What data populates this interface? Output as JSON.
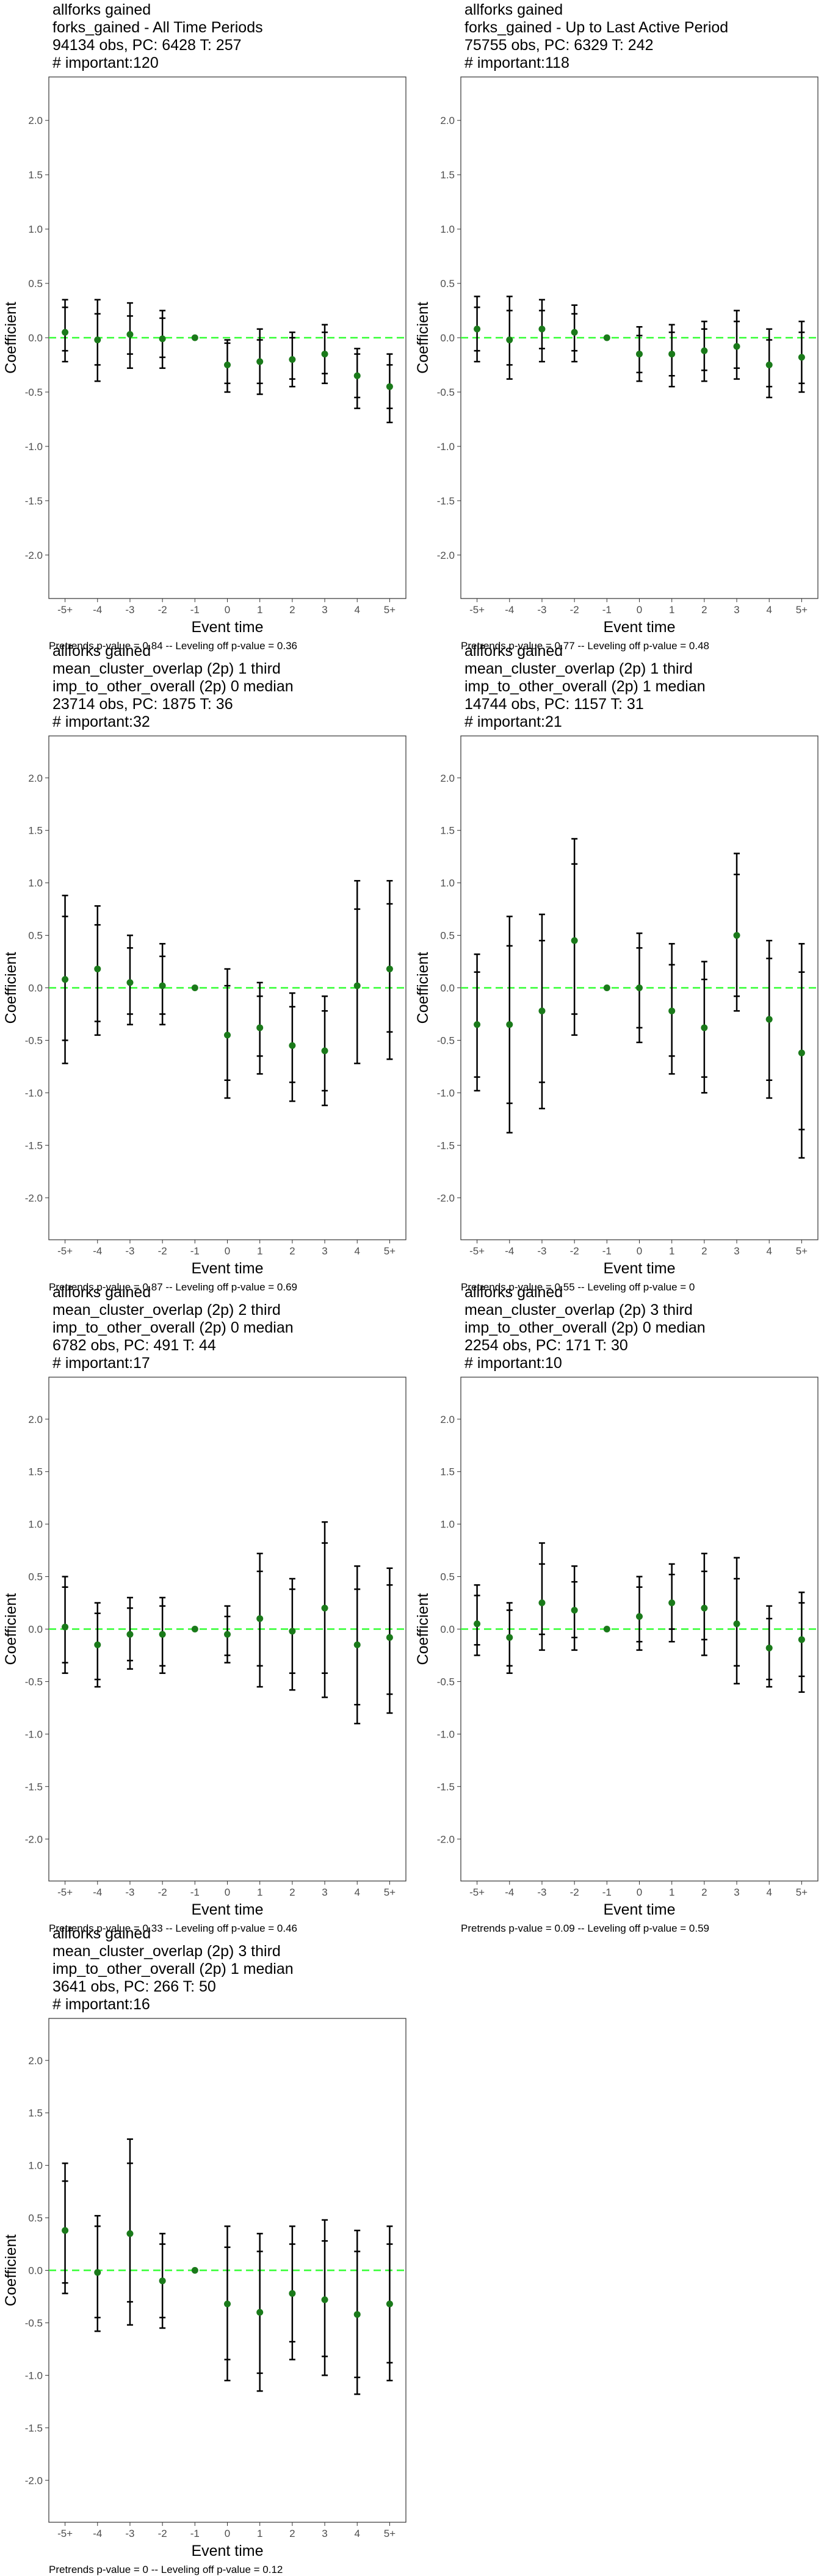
{
  "chart_data": [
    {
      "type": "scatter",
      "title_lines": [
        "allforks gained",
        "forks_gained - All Time Periods",
        "94134 obs, PC: 6428 T: 257",
        "# important:120"
      ],
      "xlabel": "Event time",
      "ylabel": "Coefficient",
      "categories": [
        "-5+",
        "-4",
        "-3",
        "-2",
        "-1",
        "0",
        "1",
        "2",
        "3",
        "4",
        "5+"
      ],
      "ylim": [
        -2.4,
        2.4
      ],
      "yticks": [
        "-2.0",
        "-1.5",
        "-1.0",
        "-0.5",
        "0.0",
        "0.5",
        "1.0",
        "1.5",
        "2.0"
      ],
      "estimate": [
        0.05,
        -0.02,
        0.03,
        -0.01,
        0,
        -0.25,
        -0.22,
        -0.2,
        -0.15,
        -0.35,
        -0.45
      ],
      "inner_ci": [
        [
          -0.12,
          0.28
        ],
        [
          -0.25,
          0.22
        ],
        [
          -0.15,
          0.2
        ],
        [
          -0.18,
          0.18
        ],
        [
          0,
          0
        ],
        [
          -0.42,
          -0.05
        ],
        [
          -0.42,
          -0.02
        ],
        [
          -0.38,
          0
        ],
        [
          -0.33,
          0.05
        ],
        [
          -0.55,
          -0.15
        ],
        [
          -0.65,
          -0.25
        ]
      ],
      "outer_ci": [
        [
          -0.22,
          0.35
        ],
        [
          -0.4,
          0.35
        ],
        [
          -0.28,
          0.32
        ],
        [
          -0.28,
          0.25
        ],
        [
          0,
          0
        ],
        [
          -0.5,
          -0.02
        ],
        [
          -0.52,
          0.08
        ],
        [
          -0.45,
          0.05
        ],
        [
          -0.42,
          0.12
        ],
        [
          -0.65,
          -0.1
        ],
        [
          -0.78,
          -0.15
        ]
      ],
      "caption": "Pretrends p-value = 0.84 -- Leveling off p-value = 0.36"
    },
    {
      "type": "scatter",
      "title_lines": [
        "allforks gained",
        "forks_gained - Up to Last Active Period",
        "75755 obs, PC: 6329 T: 242",
        "# important:118"
      ],
      "xlabel": "Event time",
      "ylabel": "Coefficient",
      "categories": [
        "-5+",
        "-4",
        "-3",
        "-2",
        "-1",
        "0",
        "1",
        "2",
        "3",
        "4",
        "5+"
      ],
      "ylim": [
        -2.4,
        2.4
      ],
      "yticks": [
        "-2.0",
        "-1.5",
        "-1.0",
        "-0.5",
        "0.0",
        "0.5",
        "1.0",
        "1.5",
        "2.0"
      ],
      "estimate": [
        0.08,
        -0.02,
        0.08,
        0.05,
        0,
        -0.15,
        -0.15,
        -0.12,
        -0.08,
        -0.25,
        -0.18
      ],
      "inner_ci": [
        [
          -0.12,
          0.28
        ],
        [
          -0.25,
          0.25
        ],
        [
          -0.1,
          0.25
        ],
        [
          -0.12,
          0.22
        ],
        [
          0,
          0
        ],
        [
          -0.32,
          0.02
        ],
        [
          -0.35,
          0.05
        ],
        [
          -0.3,
          0.08
        ],
        [
          -0.28,
          0.15
        ],
        [
          -0.45,
          -0.02
        ],
        [
          -0.42,
          0.05
        ]
      ],
      "outer_ci": [
        [
          -0.22,
          0.38
        ],
        [
          -0.38,
          0.38
        ],
        [
          -0.22,
          0.35
        ],
        [
          -0.22,
          0.3
        ],
        [
          0,
          0
        ],
        [
          -0.4,
          0.1
        ],
        [
          -0.45,
          0.12
        ],
        [
          -0.4,
          0.15
        ],
        [
          -0.38,
          0.25
        ],
        [
          -0.55,
          0.08
        ],
        [
          -0.5,
          0.15
        ]
      ],
      "caption": "Pretrends p-value = 0.77 -- Leveling off p-value = 0.48"
    },
    {
      "type": "scatter",
      "title_lines": [
        "allforks gained",
        "mean_cluster_overlap (2p) 1 third",
        "imp_to_other_overall (2p) 0 median",
        "23714 obs, PC: 1875 T: 36",
        "# important:32"
      ],
      "xlabel": "Event time",
      "ylabel": "Coefficient",
      "categories": [
        "-5+",
        "-4",
        "-3",
        "-2",
        "-1",
        "0",
        "1",
        "2",
        "3",
        "4",
        "5+"
      ],
      "ylim": [
        -2.4,
        2.4
      ],
      "yticks": [
        "-2.0",
        "-1.5",
        "-1.0",
        "-0.5",
        "0.0",
        "0.5",
        "1.0",
        "1.5",
        "2.0"
      ],
      "estimate": [
        0.08,
        0.18,
        0.05,
        0.02,
        0,
        -0.45,
        -0.38,
        -0.55,
        -0.6,
        0.02,
        0.18
      ],
      "inner_ci": [
        [
          -0.5,
          0.68
        ],
        [
          -0.32,
          0.6
        ],
        [
          -0.25,
          0.38
        ],
        [
          -0.25,
          0.3
        ],
        [
          0,
          0
        ],
        [
          -0.88,
          0.02
        ],
        [
          -0.65,
          -0.08
        ],
        [
          -0.9,
          -0.18
        ],
        [
          -0.98,
          -0.22
        ],
        [
          -0.72,
          0.75
        ],
        [
          -0.42,
          0.8
        ]
      ],
      "outer_ci": [
        [
          -0.72,
          0.88
        ],
        [
          -0.45,
          0.78
        ],
        [
          -0.35,
          0.5
        ],
        [
          -0.35,
          0.42
        ],
        [
          0,
          0
        ],
        [
          -1.05,
          0.18
        ],
        [
          -0.82,
          0.05
        ],
        [
          -1.08,
          -0.05
        ],
        [
          -1.12,
          -0.08
        ],
        [
          -0.72,
          1.02
        ],
        [
          -0.68,
          1.02
        ]
      ],
      "caption": "Pretrends p-value = 0.87 -- Leveling off p-value = 0.69"
    },
    {
      "type": "scatter",
      "title_lines": [
        "allforks gained",
        "mean_cluster_overlap (2p) 1 third",
        "imp_to_other_overall (2p) 1 median",
        "14744 obs, PC: 1157 T: 31",
        "# important:21"
      ],
      "xlabel": "Event time",
      "ylabel": "Coefficient",
      "categories": [
        "-5+",
        "-4",
        "-3",
        "-2",
        "-1",
        "0",
        "1",
        "2",
        "3",
        "4",
        "5+"
      ],
      "ylim": [
        -2.4,
        2.4
      ],
      "yticks": [
        "-2.0",
        "-1.5",
        "-1.0",
        "-0.5",
        "0.0",
        "0.5",
        "1.0",
        "1.5",
        "2.0"
      ],
      "estimate": [
        -0.35,
        -0.35,
        -0.22,
        0.45,
        0,
        0.0,
        -0.22,
        -0.38,
        0.5,
        -0.3,
        -0.62
      ],
      "inner_ci": [
        [
          -0.85,
          0.15
        ],
        [
          -1.1,
          0.4
        ],
        [
          -0.9,
          0.45
        ],
        [
          -0.25,
          1.18
        ],
        [
          0,
          0
        ],
        [
          -0.38,
          0.38
        ],
        [
          -0.65,
          0.22
        ],
        [
          -0.85,
          0.08
        ],
        [
          -0.08,
          1.08
        ],
        [
          -0.88,
          0.28
        ],
        [
          -1.35,
          0.15
        ]
      ],
      "outer_ci": [
        [
          -0.98,
          0.32
        ],
        [
          -1.38,
          0.68
        ],
        [
          -1.15,
          0.7
        ],
        [
          -0.45,
          1.42
        ],
        [
          0,
          0
        ],
        [
          -0.52,
          0.52
        ],
        [
          -0.82,
          0.42
        ],
        [
          -1.0,
          0.25
        ],
        [
          -0.22,
          1.28
        ],
        [
          -1.05,
          0.45
        ],
        [
          -1.62,
          0.42
        ]
      ],
      "caption": "Pretrends p-value = 0.55 -- Leveling off p-value = 0"
    },
    {
      "type": "scatter",
      "title_lines": [
        "allforks gained",
        "mean_cluster_overlap (2p) 2 third",
        "imp_to_other_overall (2p) 0 median",
        "6782 obs, PC: 491 T: 44",
        "# important:17"
      ],
      "xlabel": "Event time",
      "ylabel": "Coefficient",
      "categories": [
        "-5+",
        "-4",
        "-3",
        "-2",
        "-1",
        "0",
        "1",
        "2",
        "3",
        "4",
        "5+"
      ],
      "ylim": [
        -2.4,
        2.4
      ],
      "yticks": [
        "-2.0",
        "-1.5",
        "-1.0",
        "-0.5",
        "0.0",
        "0.5",
        "1.0",
        "1.5",
        "2.0"
      ],
      "estimate": [
        0.02,
        -0.15,
        -0.05,
        -0.05,
        0,
        -0.05,
        0.1,
        -0.02,
        0.2,
        -0.15,
        -0.08
      ],
      "inner_ci": [
        [
          -0.32,
          0.4
        ],
        [
          -0.48,
          0.15
        ],
        [
          -0.3,
          0.2
        ],
        [
          -0.35,
          0.22
        ],
        [
          0,
          0
        ],
        [
          -0.25,
          0.12
        ],
        [
          -0.35,
          0.55
        ],
        [
          -0.42,
          0.38
        ],
        [
          -0.42,
          0.82
        ],
        [
          -0.72,
          0.38
        ],
        [
          -0.62,
          0.42
        ]
      ],
      "outer_ci": [
        [
          -0.42,
          0.5
        ],
        [
          -0.55,
          0.25
        ],
        [
          -0.38,
          0.3
        ],
        [
          -0.42,
          0.3
        ],
        [
          0,
          0
        ],
        [
          -0.32,
          0.22
        ],
        [
          -0.55,
          0.72
        ],
        [
          -0.58,
          0.48
        ],
        [
          -0.65,
          1.02
        ],
        [
          -0.9,
          0.6
        ],
        [
          -0.8,
          0.58
        ]
      ],
      "caption": "Pretrends p-value = 0.33 -- Leveling off p-value = 0.46"
    },
    {
      "type": "scatter",
      "title_lines": [
        "allforks gained",
        "mean_cluster_overlap (2p) 3 third",
        "imp_to_other_overall (2p) 0 median",
        "2254 obs, PC: 171 T: 30",
        "# important:10"
      ],
      "xlabel": "Event time",
      "ylabel": "Coefficient",
      "categories": [
        "-5+",
        "-4",
        "-3",
        "-2",
        "-1",
        "0",
        "1",
        "2",
        "3",
        "4",
        "5+"
      ],
      "ylim": [
        -2.4,
        2.4
      ],
      "yticks": [
        "-2.0",
        "-1.5",
        "-1.0",
        "-0.5",
        "0.0",
        "0.5",
        "1.0",
        "1.5",
        "2.0"
      ],
      "estimate": [
        0.05,
        -0.08,
        0.25,
        0.18,
        0,
        0.12,
        0.25,
        0.2,
        0.05,
        -0.18,
        -0.1
      ],
      "inner_ci": [
        [
          -0.15,
          0.32
        ],
        [
          -0.35,
          0.18
        ],
        [
          -0.05,
          0.62
        ],
        [
          -0.08,
          0.45
        ],
        [
          0,
          0
        ],
        [
          -0.12,
          0.4
        ],
        [
          0.0,
          0.52
        ],
        [
          -0.1,
          0.55
        ],
        [
          -0.35,
          0.48
        ],
        [
          -0.48,
          0.1
        ],
        [
          -0.45,
          0.25
        ]
      ],
      "outer_ci": [
        [
          -0.25,
          0.42
        ],
        [
          -0.42,
          0.25
        ],
        [
          -0.2,
          0.82
        ],
        [
          -0.2,
          0.6
        ],
        [
          0,
          0
        ],
        [
          -0.2,
          0.5
        ],
        [
          -0.12,
          0.62
        ],
        [
          -0.25,
          0.72
        ],
        [
          -0.52,
          0.68
        ],
        [
          -0.55,
          0.22
        ],
        [
          -0.6,
          0.35
        ]
      ],
      "caption": "Pretrends p-value = 0.09 -- Leveling off p-value = 0.59"
    },
    {
      "type": "scatter",
      "title_lines": [
        "allforks gained",
        "mean_cluster_overlap (2p) 3 third",
        "imp_to_other_overall (2p) 1 median",
        "3641 obs, PC: 266 T: 50",
        "# important:16"
      ],
      "xlabel": "Event time",
      "ylabel": "Coefficient",
      "categories": [
        "-5+",
        "-4",
        "-3",
        "-2",
        "-1",
        "0",
        "1",
        "2",
        "3",
        "4",
        "5+"
      ],
      "ylim": [
        -2.4,
        2.4
      ],
      "yticks": [
        "-2.0",
        "-1.5",
        "-1.0",
        "-0.5",
        "0.0",
        "0.5",
        "1.0",
        "1.5",
        "2.0"
      ],
      "estimate": [
        0.38,
        -0.02,
        0.35,
        -0.1,
        0,
        -0.32,
        -0.4,
        -0.22,
        -0.28,
        -0.42,
        -0.32
      ],
      "inner_ci": [
        [
          -0.12,
          0.85
        ],
        [
          -0.45,
          0.42
        ],
        [
          -0.3,
          1.02
        ],
        [
          -0.45,
          0.25
        ],
        [
          0,
          0
        ],
        [
          -0.85,
          0.22
        ],
        [
          -0.98,
          0.18
        ],
        [
          -0.68,
          0.25
        ],
        [
          -0.82,
          0.28
        ],
        [
          -1.02,
          0.18
        ],
        [
          -0.88,
          0.25
        ]
      ],
      "outer_ci": [
        [
          -0.22,
          1.02
        ],
        [
          -0.58,
          0.52
        ],
        [
          -0.52,
          1.25
        ],
        [
          -0.55,
          0.35
        ],
        [
          0,
          0
        ],
        [
          -1.05,
          0.42
        ],
        [
          -1.15,
          0.35
        ],
        [
          -0.85,
          0.42
        ],
        [
          -1.0,
          0.48
        ],
        [
          -1.18,
          0.38
        ],
        [
          -1.05,
          0.42
        ]
      ],
      "caption": "Pretrends p-value = 0 -- Leveling off p-value = 0.12"
    }
  ],
  "colors": {
    "point": "#1a7a1a",
    "zero_line": "#33ff33",
    "error_bar": "#000000",
    "tick_label": "#4d4d4d"
  }
}
